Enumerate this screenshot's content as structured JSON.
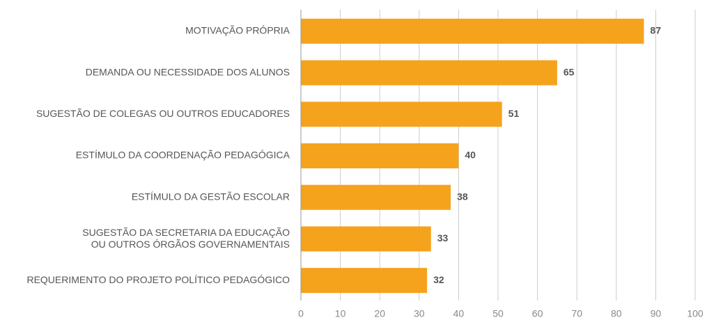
{
  "chart_data": {
    "type": "bar",
    "orientation": "horizontal",
    "categories": [
      "MOTIVAÇÃO PRÓPRIA",
      "DEMANDA OU NECESSIDADE DOS ALUNOS",
      "SUGESTÃO DE COLEGAS OU OUTROS EDUCADORES",
      "ESTÍMULO DA COORDENAÇÃO PEDAGÓGICA",
      "ESTÍMULO DA GESTÃO ESCOLAR",
      "SUGESTÃO DA SECRETARIA DA EDUCAÇÃO\nOU OUTROS ÓRGÃOS GOVERNAMENTAIS",
      "REQUERIMENTO DO PROJETO POLÍTICO PEDAGÓGICO"
    ],
    "values": [
      87,
      65,
      51,
      40,
      38,
      33,
      32
    ],
    "color": "#f5a31d",
    "xlim": [
      0,
      100
    ],
    "xticks": [
      0,
      10,
      20,
      30,
      40,
      50,
      60,
      70,
      80,
      90,
      100
    ],
    "grid": true
  }
}
